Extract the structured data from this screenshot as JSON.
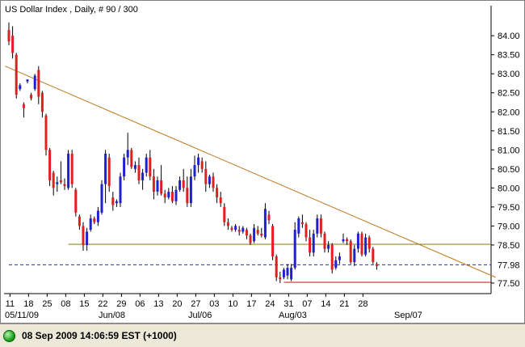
{
  "status": {
    "timestamp": "08 Sep 2009 14:06:59",
    "timezone": "EST (+1000)",
    "indicator_color": "#22aa22"
  },
  "chart_data": {
    "type": "candlestick",
    "title": "US Dollar Index , Daily, # 90 / 300",
    "ylim": [
      77.35,
      84.45
    ],
    "y_ticks": [
      "84.00",
      "83.50",
      "83.00",
      "82.50",
      "82.00",
      "81.50",
      "81.00",
      "80.50",
      "80.00",
      "79.50",
      "79.00",
      "78.50",
      "77.50"
    ],
    "x_ticks": [
      "11",
      "18",
      "25",
      "08",
      "15",
      "22",
      "29",
      "06",
      "13",
      "20",
      "27",
      "03",
      "10",
      "17",
      "24",
      "31",
      "07",
      "14",
      "21",
      "28"
    ],
    "x_month_labels": [
      "05/11/09",
      "Jun/08",
      "Jul/06",
      "Aug/03",
      "Sep/07"
    ],
    "last_price_label": "77.98",
    "colors": {
      "up": "#2020d0",
      "down": "#e02020",
      "trend": "#c07820",
      "support": "#8a7a10",
      "low_line": "#c01010",
      "last_price": "#2a2ad0"
    },
    "trendline": {
      "from": [
        -1,
        83.2
      ],
      "to": [
        131,
        77.65
      ]
    },
    "support_line": {
      "from": [
        16,
        78.52
      ],
      "to": [
        131,
        78.52
      ],
      "value": 78.52
    },
    "low_line": {
      "from": [
        74,
        77.52
      ],
      "to": [
        131,
        77.52
      ],
      "value": 77.52
    },
    "last_price_line": {
      "from": [
        0,
        77.98
      ],
      "to": [
        131,
        77.98
      ],
      "value": 77.98
    },
    "candles": [
      {
        "o": 84.15,
        "h": 84.35,
        "l": 83.75,
        "c": 83.85
      },
      {
        "o": 84.0,
        "h": 84.25,
        "l": 83.4,
        "c": 83.55
      },
      {
        "o": 83.5,
        "h": 83.55,
        "l": 82.35,
        "c": 82.45
      },
      {
        "o": 82.6,
        "h": 82.75,
        "l": 82.55,
        "c": 82.7
      },
      {
        "o": 82.2,
        "h": 82.25,
        "l": 81.85,
        "c": 82.1
      },
      {
        "o": 82.8,
        "h": 82.85,
        "l": 82.75,
        "c": 82.85
      },
      {
        "o": 82.45,
        "h": 82.5,
        "l": 82.3,
        "c": 82.35
      },
      {
        "o": 82.6,
        "h": 83.0,
        "l": 82.55,
        "c": 82.95
      },
      {
        "o": 83.1,
        "h": 83.2,
        "l": 82.2,
        "c": 82.4
      },
      {
        "o": 82.5,
        "h": 82.55,
        "l": 81.85,
        "c": 82.0
      },
      {
        "o": 81.9,
        "h": 81.95,
        "l": 80.85,
        "c": 81.0
      },
      {
        "o": 81.0,
        "h": 81.05,
        "l": 80.05,
        "c": 80.2
      },
      {
        "o": 80.4,
        "h": 80.45,
        "l": 79.8,
        "c": 80.0
      },
      {
        "o": 80.1,
        "h": 80.3,
        "l": 79.9,
        "c": 80.15
      },
      {
        "o": 80.2,
        "h": 80.7,
        "l": 80.1,
        "c": 80.15
      },
      {
        "o": 80.1,
        "h": 80.25,
        "l": 79.95,
        "c": 80.05
      },
      {
        "o": 80.0,
        "h": 81.0,
        "l": 79.95,
        "c": 80.9
      },
      {
        "o": 80.9,
        "h": 81.0,
        "l": 80.0,
        "c": 80.1
      },
      {
        "o": 79.95,
        "h": 80.0,
        "l": 79.25,
        "c": 79.35
      },
      {
        "o": 79.25,
        "h": 79.3,
        "l": 78.9,
        "c": 79.0
      },
      {
        "o": 79.0,
        "h": 79.1,
        "l": 78.35,
        "c": 78.5
      },
      {
        "o": 78.5,
        "h": 78.95,
        "l": 78.35,
        "c": 78.85
      },
      {
        "o": 78.9,
        "h": 79.3,
        "l": 78.85,
        "c": 79.2
      },
      {
        "o": 79.2,
        "h": 79.25,
        "l": 79.05,
        "c": 79.1
      },
      {
        "o": 79.1,
        "h": 79.5,
        "l": 79.0,
        "c": 79.4
      },
      {
        "o": 79.35,
        "h": 80.2,
        "l": 79.3,
        "c": 80.1
      },
      {
        "o": 80.1,
        "h": 81.0,
        "l": 79.6,
        "c": 80.9
      },
      {
        "o": 80.8,
        "h": 80.9,
        "l": 79.9,
        "c": 80.05
      },
      {
        "o": 79.75,
        "h": 79.9,
        "l": 79.4,
        "c": 79.55
      },
      {
        "o": 79.6,
        "h": 79.7,
        "l": 79.5,
        "c": 79.65
      },
      {
        "o": 79.6,
        "h": 80.4,
        "l": 79.5,
        "c": 80.3
      },
      {
        "o": 80.3,
        "h": 80.9,
        "l": 80.2,
        "c": 80.8
      },
      {
        "o": 80.8,
        "h": 81.45,
        "l": 80.6,
        "c": 81.0
      },
      {
        "o": 81.0,
        "h": 81.05,
        "l": 80.5,
        "c": 80.55
      },
      {
        "o": 80.5,
        "h": 80.7,
        "l": 80.4,
        "c": 80.6
      },
      {
        "o": 80.6,
        "h": 80.8,
        "l": 80.1,
        "c": 80.2
      },
      {
        "o": 80.2,
        "h": 80.5,
        "l": 79.95,
        "c": 80.4
      },
      {
        "o": 80.4,
        "h": 80.9,
        "l": 80.3,
        "c": 80.8
      },
      {
        "o": 80.8,
        "h": 81.0,
        "l": 80.2,
        "c": 80.3
      },
      {
        "o": 80.3,
        "h": 80.5,
        "l": 79.7,
        "c": 79.9
      },
      {
        "o": 79.9,
        "h": 80.3,
        "l": 79.8,
        "c": 80.2
      },
      {
        "o": 80.2,
        "h": 80.6,
        "l": 79.8,
        "c": 79.85
      },
      {
        "o": 79.85,
        "h": 79.95,
        "l": 79.6,
        "c": 79.75
      },
      {
        "o": 79.75,
        "h": 80.0,
        "l": 79.7,
        "c": 79.9
      },
      {
        "o": 79.9,
        "h": 80.05,
        "l": 79.6,
        "c": 79.65
      },
      {
        "o": 79.65,
        "h": 80.05,
        "l": 79.55,
        "c": 79.95
      },
      {
        "o": 79.95,
        "h": 80.3,
        "l": 79.9,
        "c": 80.2
      },
      {
        "o": 80.2,
        "h": 80.5,
        "l": 79.9,
        "c": 80.0
      },
      {
        "o": 80.0,
        "h": 80.3,
        "l": 79.5,
        "c": 79.6
      },
      {
        "o": 79.6,
        "h": 80.5,
        "l": 79.5,
        "c": 80.3
      },
      {
        "o": 80.3,
        "h": 80.85,
        "l": 80.2,
        "c": 80.6
      },
      {
        "o": 80.6,
        "h": 80.9,
        "l": 80.4,
        "c": 80.8
      },
      {
        "o": 80.7,
        "h": 80.8,
        "l": 80.4,
        "c": 80.5
      },
      {
        "o": 80.5,
        "h": 80.7,
        "l": 79.9,
        "c": 80.1
      },
      {
        "o": 80.1,
        "h": 80.35,
        "l": 80.0,
        "c": 80.3
      },
      {
        "o": 80.3,
        "h": 80.4,
        "l": 79.9,
        "c": 80.0
      },
      {
        "o": 80.0,
        "h": 80.1,
        "l": 79.6,
        "c": 79.75
      },
      {
        "o": 79.75,
        "h": 79.9,
        "l": 79.5,
        "c": 79.6
      },
      {
        "o": 79.5,
        "h": 79.6,
        "l": 79.0,
        "c": 79.1
      },
      {
        "o": 79.1,
        "h": 79.2,
        "l": 78.9,
        "c": 79.0
      },
      {
        "o": 78.95,
        "h": 79.0,
        "l": 78.85,
        "c": 78.9
      },
      {
        "o": 78.9,
        "h": 79.05,
        "l": 78.85,
        "c": 79.0
      },
      {
        "o": 78.9,
        "h": 79.0,
        "l": 78.75,
        "c": 78.85
      },
      {
        "o": 78.85,
        "h": 79.0,
        "l": 78.8,
        "c": 78.95
      },
      {
        "o": 78.9,
        "h": 78.95,
        "l": 78.65,
        "c": 78.75
      },
      {
        "o": 78.75,
        "h": 78.8,
        "l": 78.5,
        "c": 78.55
      },
      {
        "o": 78.6,
        "h": 79.05,
        "l": 78.55,
        "c": 78.95
      },
      {
        "o": 78.9,
        "h": 79.0,
        "l": 78.75,
        "c": 78.8
      },
      {
        "o": 78.8,
        "h": 78.95,
        "l": 78.7,
        "c": 78.75
      },
      {
        "o": 78.7,
        "h": 79.6,
        "l": 78.65,
        "c": 79.45
      },
      {
        "o": 79.3,
        "h": 79.4,
        "l": 79.05,
        "c": 79.15
      },
      {
        "o": 79.0,
        "h": 79.05,
        "l": 78.1,
        "c": 78.2
      },
      {
        "o": 78.2,
        "h": 78.25,
        "l": 77.55,
        "c": 77.65
      },
      {
        "o": 77.65,
        "h": 77.8,
        "l": 77.5,
        "c": 77.6
      },
      {
        "o": 77.65,
        "h": 77.9,
        "l": 77.6,
        "c": 77.85
      },
      {
        "o": 77.7,
        "h": 78.0,
        "l": 77.6,
        "c": 77.9
      },
      {
        "o": 77.6,
        "h": 78.0,
        "l": 77.55,
        "c": 77.9
      },
      {
        "o": 77.9,
        "h": 79.1,
        "l": 77.85,
        "c": 78.9
      },
      {
        "o": 78.8,
        "h": 79.25,
        "l": 78.7,
        "c": 79.2
      },
      {
        "o": 79.1,
        "h": 79.3,
        "l": 78.95,
        "c": 79.05
      },
      {
        "o": 79.05,
        "h": 79.1,
        "l": 78.6,
        "c": 78.7
      },
      {
        "o": 78.7,
        "h": 78.9,
        "l": 78.2,
        "c": 78.3
      },
      {
        "o": 78.3,
        "h": 78.9,
        "l": 78.2,
        "c": 78.8
      },
      {
        "o": 78.8,
        "h": 79.3,
        "l": 78.7,
        "c": 79.2
      },
      {
        "o": 79.2,
        "h": 79.3,
        "l": 78.7,
        "c": 78.8
      },
      {
        "o": 78.8,
        "h": 78.85,
        "l": 78.3,
        "c": 78.4
      },
      {
        "o": 78.4,
        "h": 78.6,
        "l": 78.3,
        "c": 78.5
      },
      {
        "o": 78.5,
        "h": 78.55,
        "l": 77.75,
        "c": 77.85
      },
      {
        "o": 77.9,
        "h": 78.2,
        "l": 77.85,
        "c": 78.1
      },
      {
        "o": 78.1,
        "h": 78.3,
        "l": 78.0,
        "c": 78.2
      },
      {
        "o": 78.6,
        "h": 78.8,
        "l": 78.55,
        "c": 78.65
      },
      {
        "o": 78.65,
        "h": 78.7,
        "l": 78.5,
        "c": 78.6
      },
      {
        "o": 78.6,
        "h": 78.65,
        "l": 78.0,
        "c": 78.05
      },
      {
        "o": 78.05,
        "h": 78.5,
        "l": 77.95,
        "c": 78.4
      },
      {
        "o": 78.4,
        "h": 78.85,
        "l": 78.3,
        "c": 78.8
      },
      {
        "o": 78.8,
        "h": 78.85,
        "l": 78.2,
        "c": 78.25
      },
      {
        "o": 78.25,
        "h": 78.8,
        "l": 78.2,
        "c": 78.7
      },
      {
        "o": 78.7,
        "h": 78.75,
        "l": 78.3,
        "c": 78.4
      },
      {
        "o": 78.4,
        "h": 78.45,
        "l": 78.0,
        "c": 78.05
      },
      {
        "o": 78.0,
        "h": 78.05,
        "l": 77.85,
        "c": 77.95
      }
    ]
  }
}
